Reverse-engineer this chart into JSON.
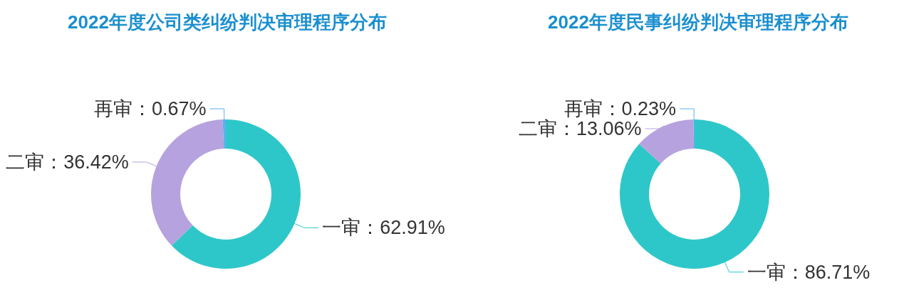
{
  "chart_data": [
    {
      "type": "donut",
      "title": "2022年度公司类纠纷判决审理程序分布",
      "categories": [
        "一审",
        "二审",
        "再审"
      ],
      "values": [
        62.91,
        36.42,
        0.67
      ],
      "colors": [
        "#2ec7c9",
        "#b6a2de",
        "#5ab1ef"
      ],
      "value_labels": [
        "62.91%",
        "36.42%",
        "0.67%"
      ]
    },
    {
      "type": "donut",
      "title": "2022年度民事纠纷判决审理程序分布",
      "categories": [
        "一审",
        "二审",
        "再审"
      ],
      "values": [
        86.71,
        13.06,
        0.23
      ],
      "colors": [
        "#2ec7c9",
        "#b6a2de",
        "#5ab1ef"
      ],
      "value_labels": [
        "86.71%",
        "13.06%",
        "0.23%"
      ]
    }
  ]
}
